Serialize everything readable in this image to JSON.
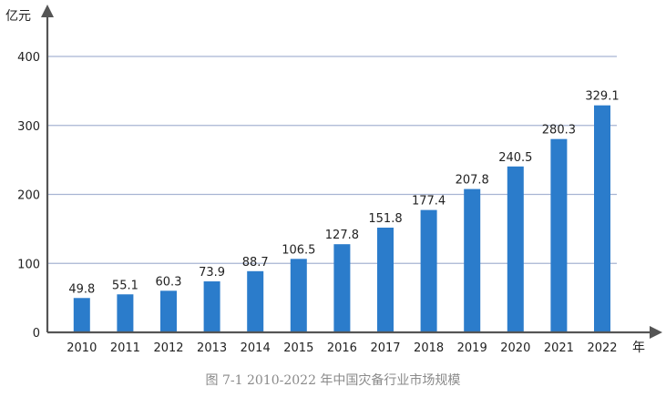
{
  "chart_data": {
    "type": "bar",
    "categories": [
      "2010",
      "2011",
      "2012",
      "2013",
      "2014",
      "2015",
      "2016",
      "2017",
      "2018",
      "2019",
      "2020",
      "2021",
      "2022"
    ],
    "values": [
      49.8,
      55.1,
      60.3,
      73.9,
      88.7,
      106.5,
      127.8,
      151.8,
      177.4,
      207.8,
      240.5,
      280.3,
      329.1
    ],
    "value_labels": [
      "49.8",
      "55.1",
      "60.3",
      "73.9",
      "88.7",
      "106.5",
      "127.8",
      "151.8",
      "177.4",
      "207.8",
      "240.5",
      "280.3",
      "329.1"
    ],
    "y_unit": "亿元",
    "x_unit": "年",
    "yticks": [
      0,
      100,
      200,
      300,
      400
    ],
    "ylim": [
      0,
      450
    ],
    "grid": true,
    "bar_color": "#2b7ccb",
    "grid_color": "#a7b4d3",
    "axis_color": "#555555"
  },
  "caption": "图 7-1  2010-2022 年中国灾备行业市场规模"
}
